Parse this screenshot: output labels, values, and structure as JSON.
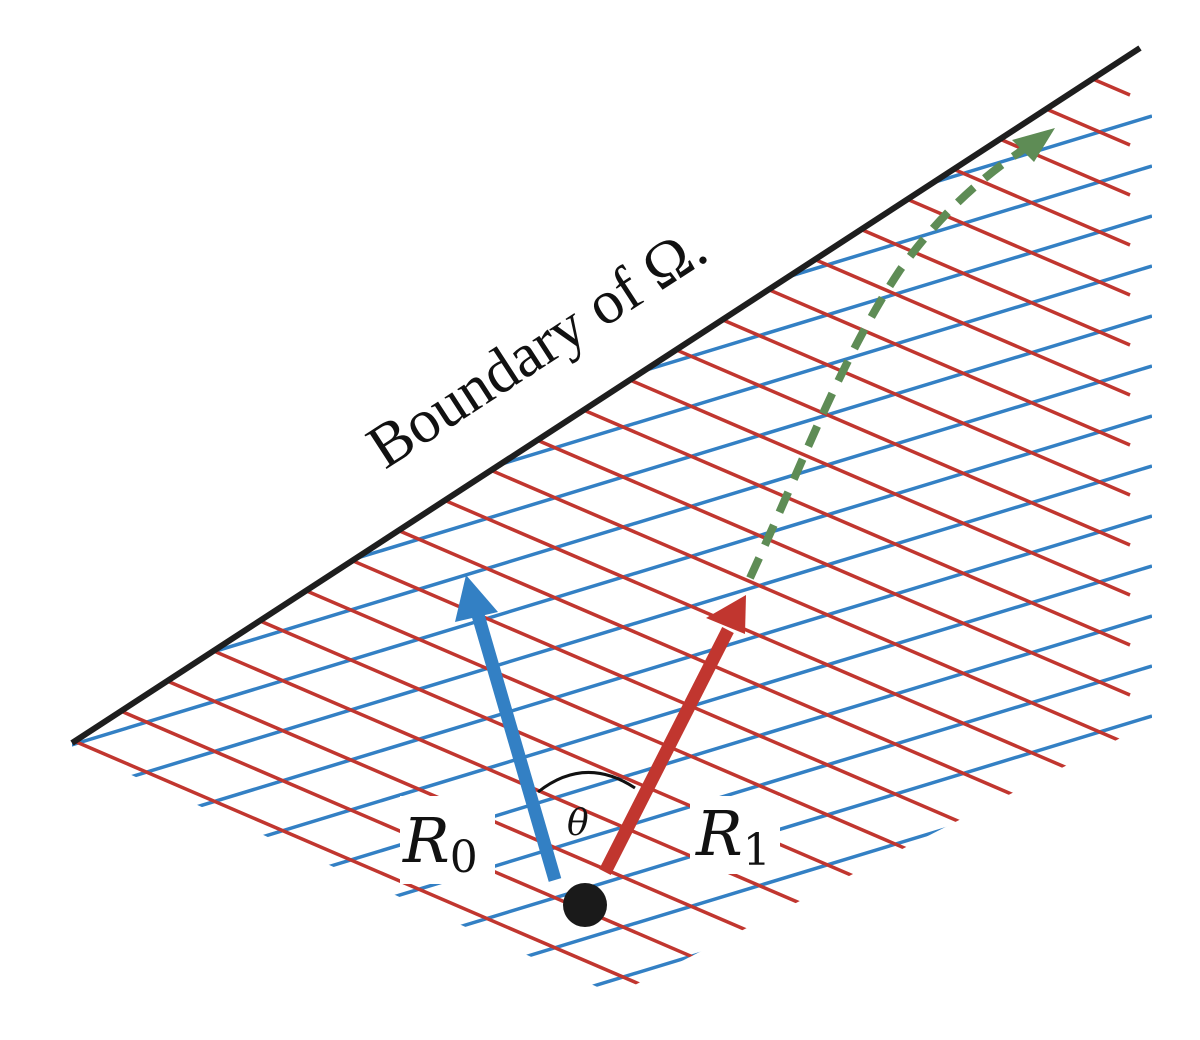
{
  "boundary_label": "Boundary of Ω.",
  "vectors": {
    "r0": {
      "label": "R",
      "subscript": "0"
    },
    "r1": {
      "label": "R",
      "subscript": "1"
    },
    "angle": "θ"
  },
  "colors": {
    "blue": "#3380c4",
    "red": "#c1362f",
    "green": "#5e8c55",
    "black": "#1e1e1e"
  }
}
